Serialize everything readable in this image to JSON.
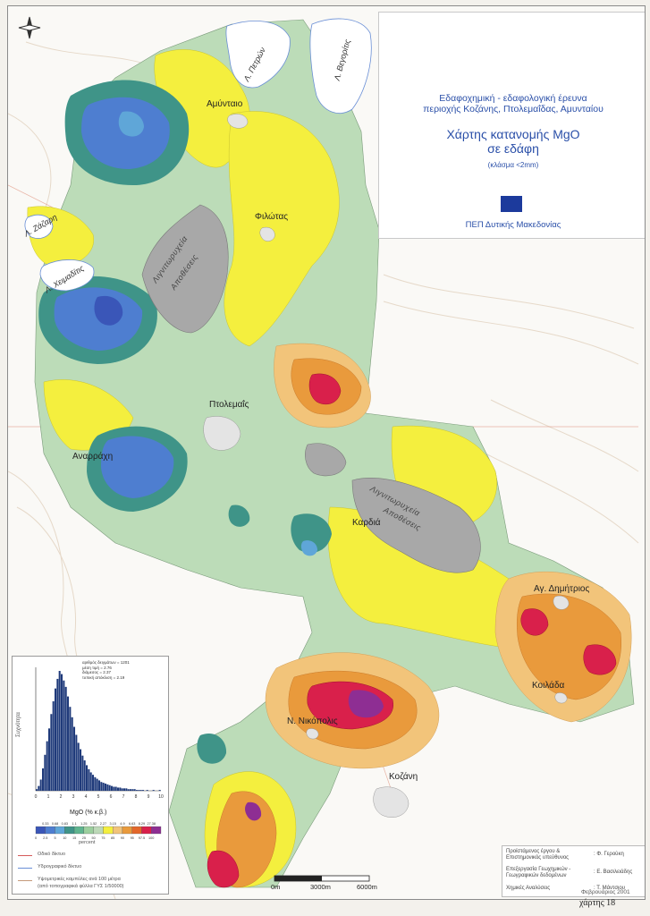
{
  "title": {
    "line1": "Εδαφοχημική - εδαφολογική έρευνα",
    "line2": "περιοχής Κοζάνης, Πτολεμαΐδας, Αμυνταίου",
    "main1": "Χάρτης κατανομής MgO",
    "main2": "σε εδάφη",
    "fraction": "(κλάσμα <2mm)",
    "program": "ΠΕΠ Δυτικής Μακεδονίας"
  },
  "places": {
    "amyntaio": "Αμύνταιο",
    "filotas": "Φιλώτας",
    "ptolemais": "Πτολεμαΐς",
    "anarrachi": "Αναρράχη",
    "kardia": "Καρδιά",
    "ag_dimitrios": "Αγ. Δημήτριος",
    "koilada": "Κοιλάδα",
    "n_nikopolis": "Ν. Νικόπολις",
    "kozani": "Κοζάνη"
  },
  "lakes": {
    "petron": "Λ. Πετρών",
    "vegoritis": "Λ. Βεγορίτις",
    "zazari": "Λ. Ζάζαρη",
    "cheimaditis": "Λ. Χειμαδίτις"
  },
  "mines": {
    "north": [
      "Λιγνιτωρυχεία",
      "Αποθέσεις"
    ],
    "south": [
      "Λιγνιτωρυχεία",
      "Αποθέσεις"
    ]
  },
  "legend": {
    "stats": [
      {
        "label": "αριθμός δειγμάτων",
        "value": "1201"
      },
      {
        "label": "μέση τιμή",
        "value": "2.76"
      },
      {
        "label": "διάμεσος",
        "value": "2.37"
      },
      {
        "label": "τυπική απόκλιση",
        "value": "2.19"
      }
    ],
    "y_label": "Συχνότητα",
    "x_ticks": [
      "0",
      "1",
      "2",
      "3",
      "4",
      "5",
      "6",
      "7",
      "8",
      "9",
      "10"
    ],
    "histogram": [
      2,
      6,
      14,
      28,
      45,
      62,
      78,
      96,
      112,
      128,
      140,
      150,
      146,
      138,
      130,
      118,
      105,
      92,
      80,
      70,
      60,
      52,
      44,
      38,
      32,
      27,
      23,
      20,
      17,
      15,
      13,
      11,
      10,
      9,
      8,
      7,
      6,
      5,
      5,
      4,
      4,
      3,
      3,
      3,
      2,
      2,
      2,
      2,
      1,
      1,
      1,
      1,
      0,
      1,
      0,
      0,
      1,
      0,
      0,
      1
    ],
    "class_breaks": [
      "0.33",
      "0.68",
      "0.83",
      "1.1",
      "1.25",
      "1.52",
      "2.27",
      "3.15",
      "4.9",
      "6.63",
      "8.29",
      "27.38"
    ],
    "title": "MgO (% κ.β.)",
    "percentiles": [
      "0",
      "2.5",
      "5",
      "10",
      "15",
      "25",
      "50",
      "75",
      "85",
      "90",
      "95",
      "97.5",
      "100"
    ],
    "percent_label": "percent",
    "class_colors": [
      "#3a56b8",
      "#4e7ed0",
      "#5fa6d8",
      "#3f9488",
      "#5fb58f",
      "#9ccf9e",
      "#bdd9b8",
      "#f4ef3e",
      "#f2c47a",
      "#e99a3c",
      "#e3672a",
      "#d9204b",
      "#8e2e93"
    ],
    "items": [
      {
        "label": "Οδικό δίκτυο",
        "color": "#d65a5a"
      },
      {
        "label": "Υδρογραφικό δίκτυο",
        "color": "#6a8fd6"
      },
      {
        "label": "Υψομετρικές καμπύλες ανά 100 μέτρα",
        "color": "#c49a7a"
      },
      {
        "label": "(από τοπογραφικά φύλλα ΓΥΣ 1/50000)",
        "color": ""
      }
    ]
  },
  "credits": [
    {
      "role": "Προϊστάμενος έργου & Επιστημονικός υπεύθυνος",
      "name": ": Φ. Γερούκη"
    },
    {
      "role": "Επεξεργασία Γεωχημικών - Γεωγραφικών δεδομένων",
      "name": ": Ε. Βασιλειάδης"
    },
    {
      "role": "Χημικές Αναλύσεις",
      "name": ": Τ. Μάντσιου"
    }
  ],
  "scale": {
    "labels": [
      "0m",
      "3000m",
      "6000m"
    ]
  },
  "date": "Φεβρουάριος 2001",
  "sheet": "χάρτης 18",
  "colors": {
    "title_blue": "#2a4fa8",
    "pale_green": "#bcdcb8",
    "yellow": "#f4ef3e",
    "orange": "#e99a3c",
    "red": "#d9204b",
    "mine_grey": "#a8a8a8"
  }
}
